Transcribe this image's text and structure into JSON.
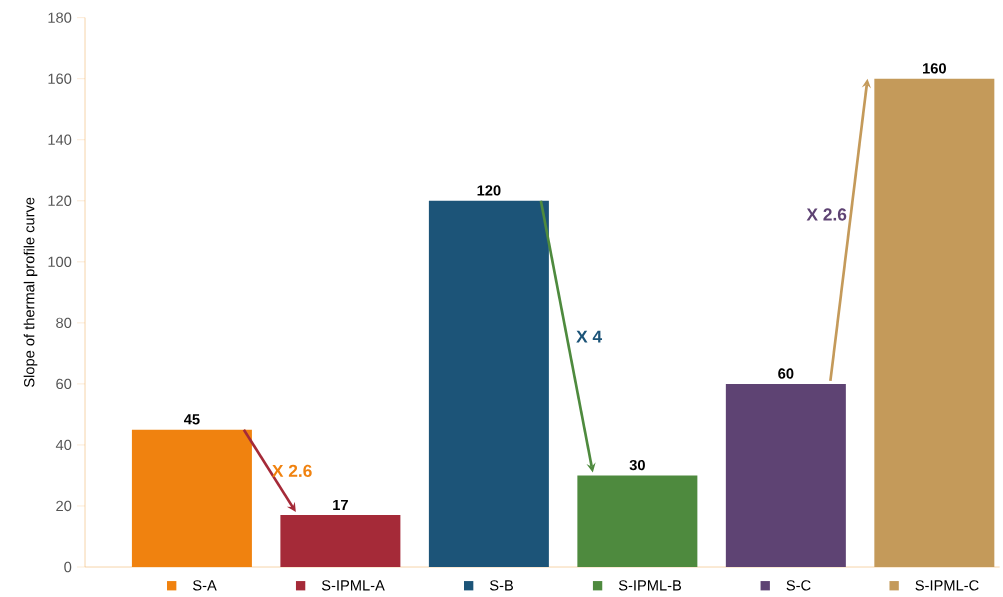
{
  "chart_data": {
    "type": "bar",
    "ylabel": "Slope of thermal profile curve",
    "categories": [
      "S-A",
      "S-IPML-A",
      "S-B",
      "S-IPML-B",
      "S-C",
      "S-IPML-C"
    ],
    "values": [
      45,
      17,
      120,
      30,
      60,
      160
    ],
    "colors": [
      "#f0820f",
      "#a52a38",
      "#1c5478",
      "#4e8a3e",
      "#5e4373",
      "#c49a5a"
    ],
    "ylim": [
      0,
      180
    ],
    "yticks": [
      0,
      20,
      40,
      60,
      80,
      100,
      120,
      140,
      160,
      180
    ],
    "data_labels": true,
    "grid": false,
    "annotations": [
      "X 2.6",
      "X 4",
      "X 2.6"
    ]
  }
}
